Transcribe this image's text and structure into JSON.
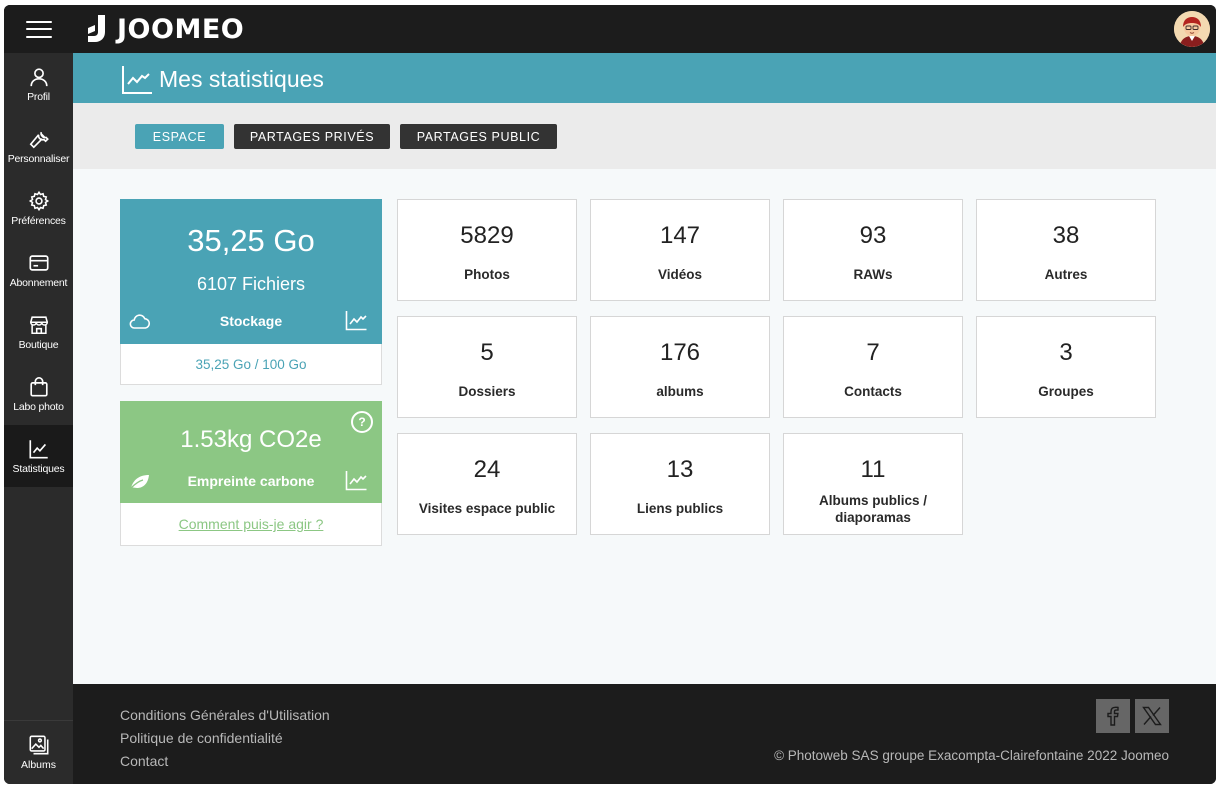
{
  "app": {
    "brand": "JOOMEO"
  },
  "sidebar": {
    "menu_icon": "hamburger-icon",
    "items": [
      {
        "label": "Profil",
        "icon": "user-icon"
      },
      {
        "label": "Personnaliser",
        "icon": "wrench-icon"
      },
      {
        "label": "Préférences",
        "icon": "gear-icon"
      },
      {
        "label": "Abonnement",
        "icon": "credit-card-icon"
      },
      {
        "label": "Boutique",
        "icon": "shop-icon"
      },
      {
        "label": "Labo photo",
        "icon": "bag-icon"
      },
      {
        "label": "Statistiques",
        "icon": "chart-line-icon",
        "active": true
      }
    ],
    "bottom_item": {
      "label": "Albums",
      "icon": "album-icon"
    }
  },
  "header": {
    "title": "Mes statistiques"
  },
  "tabs": [
    {
      "label": "ESPACE",
      "active": true
    },
    {
      "label": "PARTAGES PRIVÉS"
    },
    {
      "label": "PARTAGES PUBLIC"
    }
  ],
  "storage": {
    "size": "35,25 Go",
    "files": "6107 Fichiers",
    "label": "Stockage",
    "usage": "35,25 Go / 100 Go",
    "used_fraction": 0.3525
  },
  "carbon": {
    "value": "1.53kg CO2e",
    "label": "Empreinte carbone",
    "help": "?",
    "link": "Comment puis-je agir ?"
  },
  "stats": [
    {
      "value": "5829",
      "label": "Photos"
    },
    {
      "value": "147",
      "label": "Vidéos"
    },
    {
      "value": "93",
      "label": "RAWs"
    },
    {
      "value": "38",
      "label": "Autres"
    },
    {
      "value": "5",
      "label": "Dossiers"
    },
    {
      "value": "176",
      "label": "albums"
    },
    {
      "value": "7",
      "label": "Contacts"
    },
    {
      "value": "3",
      "label": "Groupes"
    },
    {
      "value": "24",
      "label": "Visites espace public"
    },
    {
      "value": "13",
      "label": "Liens publics"
    },
    {
      "value": "11",
      "label": "Albums publics / diaporamas"
    }
  ],
  "footer": {
    "links": [
      "Conditions Générales d'Utilisation",
      "Politique de confidentialité",
      "Contact"
    ],
    "copyright": "© Photoweb SAS groupe Exacompta-Clairefontaine 2022 Joomeo",
    "social": [
      "facebook-icon",
      "x-icon"
    ]
  },
  "colors": {
    "accent": "#4aa3b5",
    "green": "#8cc784",
    "dark": "#1c1c1c",
    "sidebar": "#2b2b2b"
  }
}
